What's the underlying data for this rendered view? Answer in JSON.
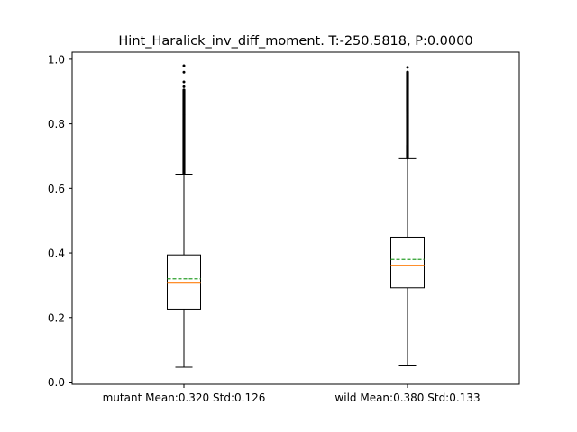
{
  "chart_data": {
    "type": "box",
    "title": "Hint_Haralick_inv_diff_moment. T:-250.5818, P:0.0000",
    "ylim": [
      -0.007,
      1.022
    ],
    "yticks": [
      0.0,
      0.2,
      0.4,
      0.6,
      0.8,
      1.0
    ],
    "ytick_labels": [
      "0.0",
      "0.2",
      "0.4",
      "0.6",
      "0.8",
      "1.0"
    ],
    "grid": false,
    "categories": [
      "mutant Mean:0.320 Std:0.126",
      "wild Mean:0.380 Std:0.133"
    ],
    "boxes": [
      {
        "whisker_low": 0.046,
        "q1": 0.226,
        "median": 0.309,
        "mean": 0.32,
        "q3": 0.394,
        "whisker_high": 0.644,
        "outlier_range": [
          0.646,
          0.905
        ],
        "outliers_sparse": [
          0.915,
          0.93,
          0.96,
          0.98
        ]
      },
      {
        "whisker_low": 0.05,
        "q1": 0.292,
        "median": 0.362,
        "mean": 0.38,
        "q3": 0.449,
        "whisker_high": 0.692,
        "outlier_range": [
          0.694,
          0.96
        ],
        "outliers_sparse": [
          0.975
        ]
      }
    ],
    "colors": {
      "median": "#ff7f0e",
      "mean": "#2ca02c",
      "box": "#000000"
    }
  }
}
